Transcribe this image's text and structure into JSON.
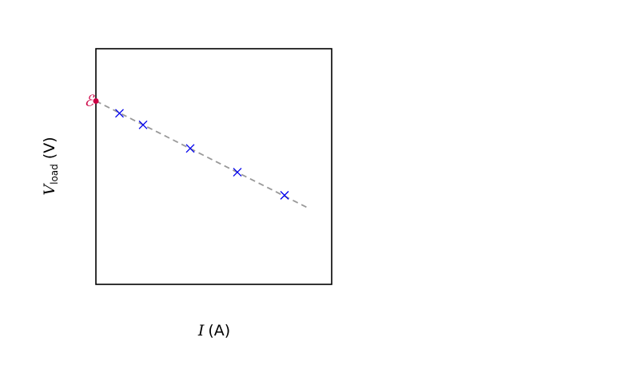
{
  "chart_data": {
    "type": "scatter",
    "xlabel": {
      "symbol": "I",
      "unit": "(A)"
    },
    "ylabel": {
      "symbol": "V",
      "subscript": "load",
      "unit": "(V)"
    },
    "xlim": [
      0,
      1
    ],
    "ylim": [
      0,
      1
    ],
    "grid": false,
    "ticks": "none",
    "series": [
      {
        "marker": "x",
        "color": "#0000ee",
        "points": [
          {
            "x": 0.1,
            "y": 0.726
          },
          {
            "x": 0.2,
            "y": 0.677
          },
          {
            "x": 0.4,
            "y": 0.577
          },
          {
            "x": 0.6,
            "y": 0.476
          },
          {
            "x": 0.8,
            "y": 0.378
          }
        ]
      }
    ],
    "fit_line": {
      "style": "dashed",
      "color": "#999999",
      "x": [
        0,
        0.9
      ],
      "y": [
        0.778,
        0.324
      ]
    },
    "intercept": {
      "label": "ℰ",
      "x": 0,
      "y": 0.778,
      "color": "#cc0044"
    }
  }
}
